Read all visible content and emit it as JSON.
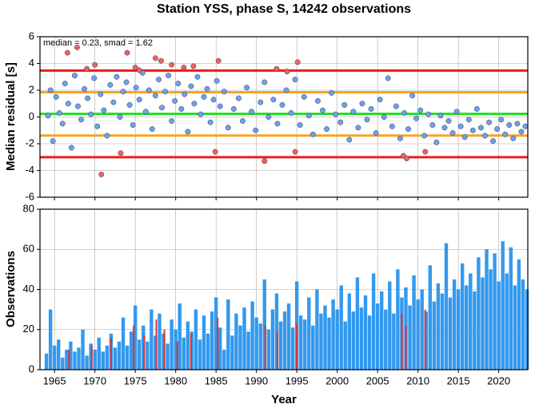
{
  "chart_data": [
    {
      "type": "scatter",
      "title": "Station YSS, phase S, 14242 observations",
      "ylabel": "Median residual [s]",
      "annotation": "median = 0.23, smad = 1.62",
      "xlim": [
        1963.2,
        2023.6
      ],
      "ylim": [
        -6,
        6
      ],
      "yticks": [
        -6,
        -4,
        -2,
        0,
        2,
        4,
        6
      ],
      "grid": true,
      "hlines": [
        {
          "value": 3.47,
          "color": "#ee1c1c"
        },
        {
          "value": 1.85,
          "color": "#f5a623"
        },
        {
          "value": 0.23,
          "color": "#22dd22"
        },
        {
          "value": -1.39,
          "color": "#f5a623"
        },
        {
          "value": -3.01,
          "color": "#ee1c1c"
        }
      ],
      "series": [
        {
          "color": "#6ea0f0",
          "x": [
            1964.2,
            1964.5,
            1964.8,
            1965.2,
            1965.6,
            1966.0,
            1966.3,
            1966.7,
            1967.1,
            1967.5,
            1967.9,
            1968.3,
            1968.7,
            1969.1,
            1969.5,
            1969.9,
            1970.3,
            1970.7,
            1971.1,
            1971.5,
            1971.9,
            1972.3,
            1972.7,
            1973.1,
            1973.5,
            1973.9,
            1974.3,
            1974.7,
            1975.1,
            1975.5,
            1975.9,
            1976.3,
            1976.7,
            1977.1,
            1977.5,
            1977.9,
            1978.3,
            1978.7,
            1979.1,
            1979.5,
            1979.9,
            1980.3,
            1980.7,
            1981.1,
            1981.5,
            1981.9,
            1982.3,
            1982.7,
            1983.1,
            1983.5,
            1983.9,
            1984.3,
            1984.7,
            1985.1,
            1985.5,
            1986.0,
            1986.5,
            1987.2,
            1987.8,
            1988.3,
            1988.8,
            1989.4,
            1989.9,
            1990.5,
            1991.0,
            1991.5,
            1992.1,
            1992.6,
            1993.2,
            1993.7,
            1994.3,
            1994.8,
            1995.4,
            1995.9,
            1996.5,
            1997.0,
            1997.6,
            1998.2,
            1998.7,
            1999.3,
            1999.8,
            2000.4,
            2000.9,
            2001.5,
            2002.0,
            2002.6,
            2003.1,
            2003.7,
            2004.2,
            2004.8,
            2005.3,
            2005.8,
            2006.3,
            2006.8,
            2007.3,
            2007.8,
            2008.3,
            2008.8,
            2009.3,
            2009.8,
            2010.3,
            2010.8,
            2011.3,
            2011.8,
            2012.3,
            2012.8,
            2013.3,
            2013.8,
            2014.3,
            2014.8,
            2015.3,
            2015.8,
            2016.3,
            2016.8,
            2017.3,
            2017.8,
            2018.3,
            2018.8,
            2019.3,
            2019.8,
            2020.3,
            2020.8,
            2021.3,
            2021.8,
            2022.3,
            2022.8,
            2023.3
          ],
          "values": [
            0.1,
            2.0,
            -1.8,
            1.5,
            0.3,
            -0.5,
            2.5,
            1.0,
            -2.3,
            3.1,
            0.8,
            -0.2,
            2.1,
            1.4,
            0.2,
            2.9,
            -0.7,
            1.7,
            0.5,
            -1.4,
            2.4,
            1.1,
            3.0,
            0.0,
            1.9,
            2.6,
            0.9,
            -0.6,
            2.2,
            1.3,
            3.3,
            0.4,
            2.0,
            -0.9,
            1.6,
            2.8,
            0.7,
            1.9,
            3.1,
            -0.3,
            1.2,
            2.5,
            0.6,
            1.7,
            -1.1,
            2.3,
            1.0,
            3.0,
            0.2,
            1.5,
            2.1,
            -0.4,
            1.3,
            2.7,
            0.8,
            1.9,
            -0.8,
            0.6,
            1.4,
            -0.3,
            2.2,
            0.4,
            -1.0,
            1.1,
            2.6,
            0.0,
            1.3,
            -0.5,
            0.9,
            2.0,
            0.3,
            2.8,
            -0.6,
            1.5,
            0.1,
            -1.3,
            1.2,
            0.5,
            -0.9,
            1.8,
            0.2,
            -0.4,
            0.9,
            -1.7,
            0.4,
            -0.8,
            1.0,
            -0.2,
            0.6,
            -1.2,
            1.3,
            0.0,
            2.9,
            -0.7,
            0.8,
            -1.6,
            0.3,
            -0.9,
            1.6,
            -0.1,
            0.5,
            -1.4,
            0.2,
            -0.6,
            -1.9,
            0.1,
            -0.8,
            -0.3,
            -1.2,
            0.4,
            -0.7,
            -1.5,
            -0.2,
            -1.0,
            0.6,
            -0.8,
            -1.4,
            -0.4,
            -1.8,
            -0.9,
            -0.2,
            -1.3,
            -0.6,
            -1.6,
            -0.5,
            -1.1,
            -0.7
          ]
        },
        {
          "color": "#f26060",
          "x": [
            1966.6,
            1967.8,
            1969.0,
            1970.0,
            1970.8,
            1973.2,
            1974.0,
            1975.0,
            1975.5,
            1977.5,
            1978.2,
            1979.5,
            1981.0,
            1982.2,
            1984.9,
            1985.3,
            1991.0,
            1992.5,
            1993.8,
            1995.1,
            1994.8,
            2008.2,
            2008.6,
            2010.9
          ],
          "values": [
            4.8,
            5.2,
            3.6,
            3.9,
            -4.3,
            -2.7,
            4.8,
            3.7,
            3.5,
            4.4,
            4.2,
            3.9,
            3.7,
            3.8,
            -2.6,
            4.2,
            -3.3,
            3.6,
            3.4,
            4.1,
            -2.6,
            -2.9,
            -3.1,
            -2.6
          ]
        }
      ]
    },
    {
      "type": "bar",
      "xlabel": "Year",
      "ylabel": "Observations",
      "xlim": [
        1963.2,
        2023.6
      ],
      "ylim": [
        0,
        80
      ],
      "xticks": [
        1965,
        1970,
        1975,
        1980,
        1985,
        1990,
        1995,
        2000,
        2005,
        2010,
        2015,
        2020
      ],
      "yticks": [
        0,
        20,
        40,
        60,
        80
      ],
      "grid": true,
      "series": [
        {
          "color": "#3399ee",
          "x": [
            1964.0,
            1964.5,
            1965.0,
            1965.5,
            1966.0,
            1966.5,
            1967.0,
            1967.5,
            1968.0,
            1968.5,
            1969.0,
            1969.5,
            1970.0,
            1970.5,
            1971.0,
            1971.5,
            1972.0,
            1972.5,
            1973.0,
            1973.5,
            1974.0,
            1974.5,
            1975.0,
            1975.5,
            1976.0,
            1976.5,
            1977.0,
            1977.5,
            1978.0,
            1978.5,
            1979.0,
            1979.5,
            1980.0,
            1980.5,
            1981.0,
            1981.5,
            1982.0,
            1982.5,
            1983.0,
            1983.5,
            1984.0,
            1984.5,
            1985.0,
            1985.5,
            1986.0,
            1986.5,
            1987.0,
            1987.5,
            1988.0,
            1988.5,
            1989.0,
            1989.5,
            1990.0,
            1990.5,
            1991.0,
            1991.5,
            1992.0,
            1992.5,
            1993.0,
            1993.5,
            1994.0,
            1994.5,
            1995.0,
            1995.5,
            1996.0,
            1996.5,
            1997.0,
            1997.5,
            1998.0,
            1998.5,
            1999.0,
            1999.5,
            2000.0,
            2000.5,
            2001.0,
            2001.5,
            2002.0,
            2002.5,
            2003.0,
            2003.5,
            2004.0,
            2004.5,
            2005.0,
            2005.5,
            2006.0,
            2006.5,
            2007.0,
            2007.5,
            2008.0,
            2008.5,
            2009.0,
            2009.5,
            2010.0,
            2010.5,
            2011.0,
            2011.5,
            2012.0,
            2012.5,
            2013.0,
            2013.5,
            2014.0,
            2014.5,
            2015.0,
            2015.5,
            2016.0,
            2016.5,
            2017.0,
            2017.5,
            2018.0,
            2018.5,
            2019.0,
            2019.5,
            2020.0,
            2020.5,
            2021.0,
            2021.5,
            2022.0,
            2022.5,
            2023.0,
            2023.5
          ],
          "values": [
            8,
            30,
            12,
            15,
            6,
            10,
            14,
            9,
            11,
            20,
            7,
            13,
            10,
            16,
            9,
            12,
            18,
            11,
            14,
            26,
            12,
            19,
            32,
            15,
            22,
            14,
            30,
            17,
            28,
            18,
            13,
            25,
            20,
            33,
            16,
            24,
            19,
            30,
            15,
            27,
            18,
            29,
            36,
            21,
            10,
            35,
            17,
            28,
            22,
            31,
            19,
            34,
            26,
            23,
            45,
            20,
            30,
            38,
            24,
            29,
            33,
            21,
            44,
            27,
            25,
            36,
            22,
            40,
            28,
            32,
            26,
            35,
            30,
            42,
            24,
            38,
            29,
            46,
            31,
            37,
            27,
            48,
            33,
            39,
            30,
            44,
            28,
            50,
            36,
            41,
            32,
            47,
            35,
            40,
            29,
            52,
            34,
            43,
            38,
            63,
            36,
            45,
            40,
            53,
            42,
            48,
            39,
            56,
            46,
            60,
            50,
            58,
            44,
            64,
            48,
            61,
            42,
            55,
            45,
            40
          ]
        },
        {
          "color": "#dd3333",
          "x": [
            1966.8,
            1969.6,
            1972.0,
            1974.8,
            1976.1,
            1977.6,
            1978.6,
            1980.2,
            1981.9,
            1985.2,
            1991.1,
            1992.6,
            1995.0,
            2008.0,
            2008.5,
            2010.9
          ],
          "values": [
            10,
            12,
            16,
            22,
            17,
            25,
            20,
            14,
            18,
            26,
            22,
            19,
            23,
            28,
            22,
            30
          ]
        }
      ]
    }
  ]
}
